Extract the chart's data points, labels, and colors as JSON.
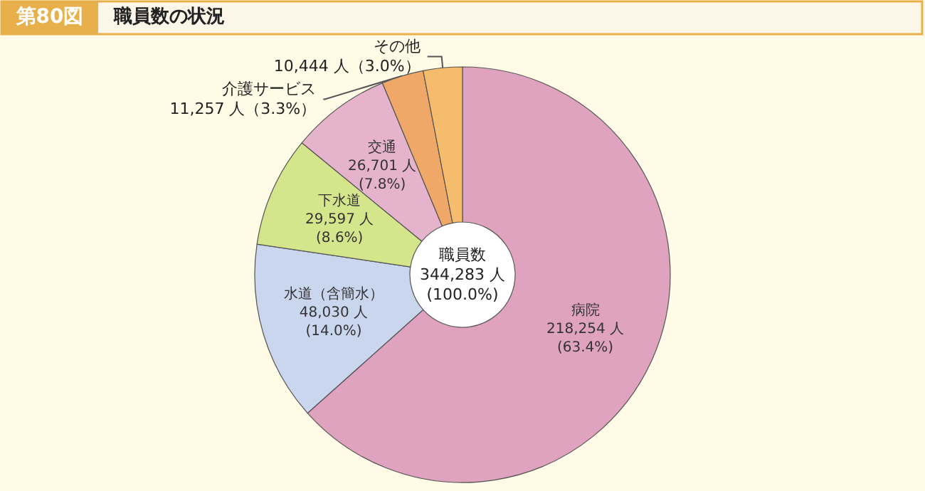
{
  "chart_data": {
    "type": "donut",
    "title": "第80図",
    "subtitle": "職員数の状況",
    "categories": [
      "病院",
      "水道（含簡水）",
      "下水道",
      "交通",
      "介護サービス",
      "その他"
    ],
    "values": [
      218254,
      48030,
      29597,
      26701,
      11257,
      10444
    ],
    "colors": [
      "#dfa3bf",
      "#c9d6ee",
      "#d5e58c",
      "#e5b3cb",
      "#f0a868",
      "#f4bc6c"
    ],
    "value_labels": [
      "218,254 人\n(63.4%)",
      "48,030 人\n(14.0%)",
      "29,597 人\n(8.6%)",
      "26,701 人\n(7.8%)",
      "11,257 人（3.3%）",
      "10,444 人（3.0%）"
    ],
    "annotations": [
      "職員数\n344,283 人\n(100.0%)"
    ],
    "legend": false
  }
}
